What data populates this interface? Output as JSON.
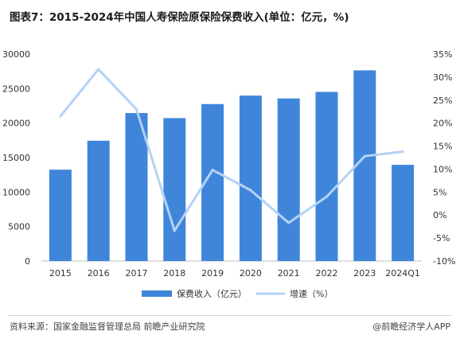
{
  "title": "图表7：2015-2024年中国人寿保险原保险保费收入(单位：亿元，%)",
  "source": "资料来源：国家金融监督管理总局 前瞻产业研究院",
  "brand": "@前瞻经济学人APP",
  "colors": {
    "bar": "#3f86db",
    "line": "#b4d2f3",
    "axis": "#bfbfbf",
    "text": "#333333"
  },
  "chart_data": {
    "type": "bar",
    "categories": [
      "2015",
      "2016",
      "2017",
      "2018",
      "2019",
      "2020",
      "2021",
      "2022",
      "2023",
      "2024Q1"
    ],
    "series": [
      {
        "name": "保费收入（亿元）",
        "type": "bar",
        "axis": "left",
        "values": [
          13242,
          17442,
          21456,
          20723,
          22754,
          23982,
          23572,
          24519,
          27646,
          13944
        ]
      },
      {
        "name": "增速（%）",
        "type": "line",
        "axis": "right",
        "values": [
          21.5,
          31.7,
          23.0,
          -3.4,
          9.8,
          5.4,
          -1.7,
          4.0,
          12.8,
          13.8
        ]
      }
    ],
    "ylim": [
      0,
      30000
    ],
    "yticks": [
      "0",
      "5000",
      "10000",
      "15000",
      "20000",
      "25000",
      "30000"
    ],
    "y2lim": [
      -10,
      35
    ],
    "y2ticks": [
      "-10%",
      "-5%",
      "0%",
      "5%",
      "10%",
      "15%",
      "20%",
      "25%",
      "30%",
      "35%"
    ],
    "legend_position": "bottom",
    "grid": false
  }
}
